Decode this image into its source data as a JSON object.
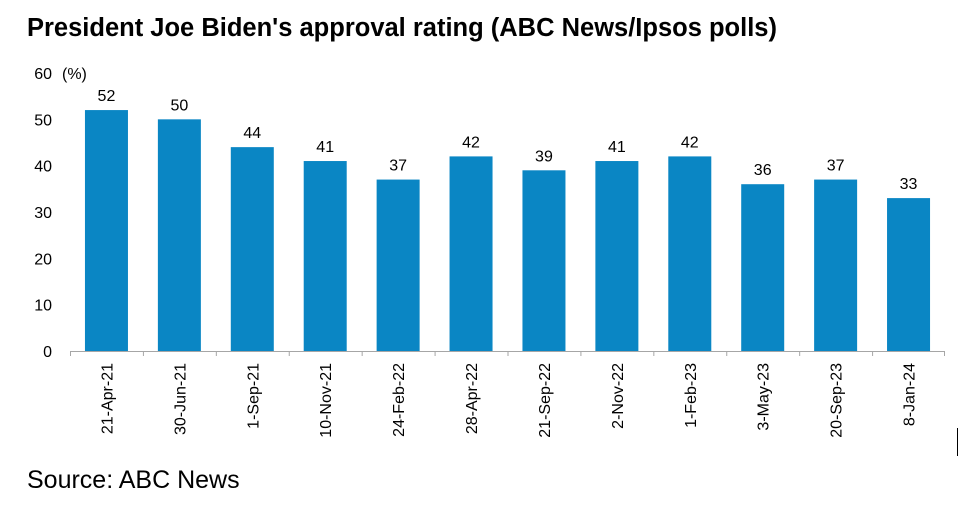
{
  "title": "President Joe Biden's approval rating (ABC News/Ipsos polls)",
  "source": "Source: ABC News",
  "chart_data": {
    "type": "bar",
    "title": "President Joe Biden's approval rating (ABC News/Ipsos polls)",
    "ylabel": "(%)",
    "xlabel": "",
    "ylim": [
      0,
      60
    ],
    "yticks": [
      0,
      10,
      20,
      30,
      40,
      50,
      60
    ],
    "categories": [
      "21-Apr-21",
      "30-Jun-21",
      "1-Sep-21",
      "10-Nov-21",
      "24-Feb-22",
      "28-Apr-22",
      "21-Sep-22",
      "2-Nov-22",
      "1-Feb-23",
      "3-May-23",
      "20-Sep-23",
      "8-Jan-24"
    ],
    "values": [
      52,
      50,
      44,
      41,
      37,
      42,
      39,
      41,
      42,
      36,
      37,
      33
    ],
    "bar_color": "#0a86c4",
    "grid": false,
    "legend": "none"
  }
}
